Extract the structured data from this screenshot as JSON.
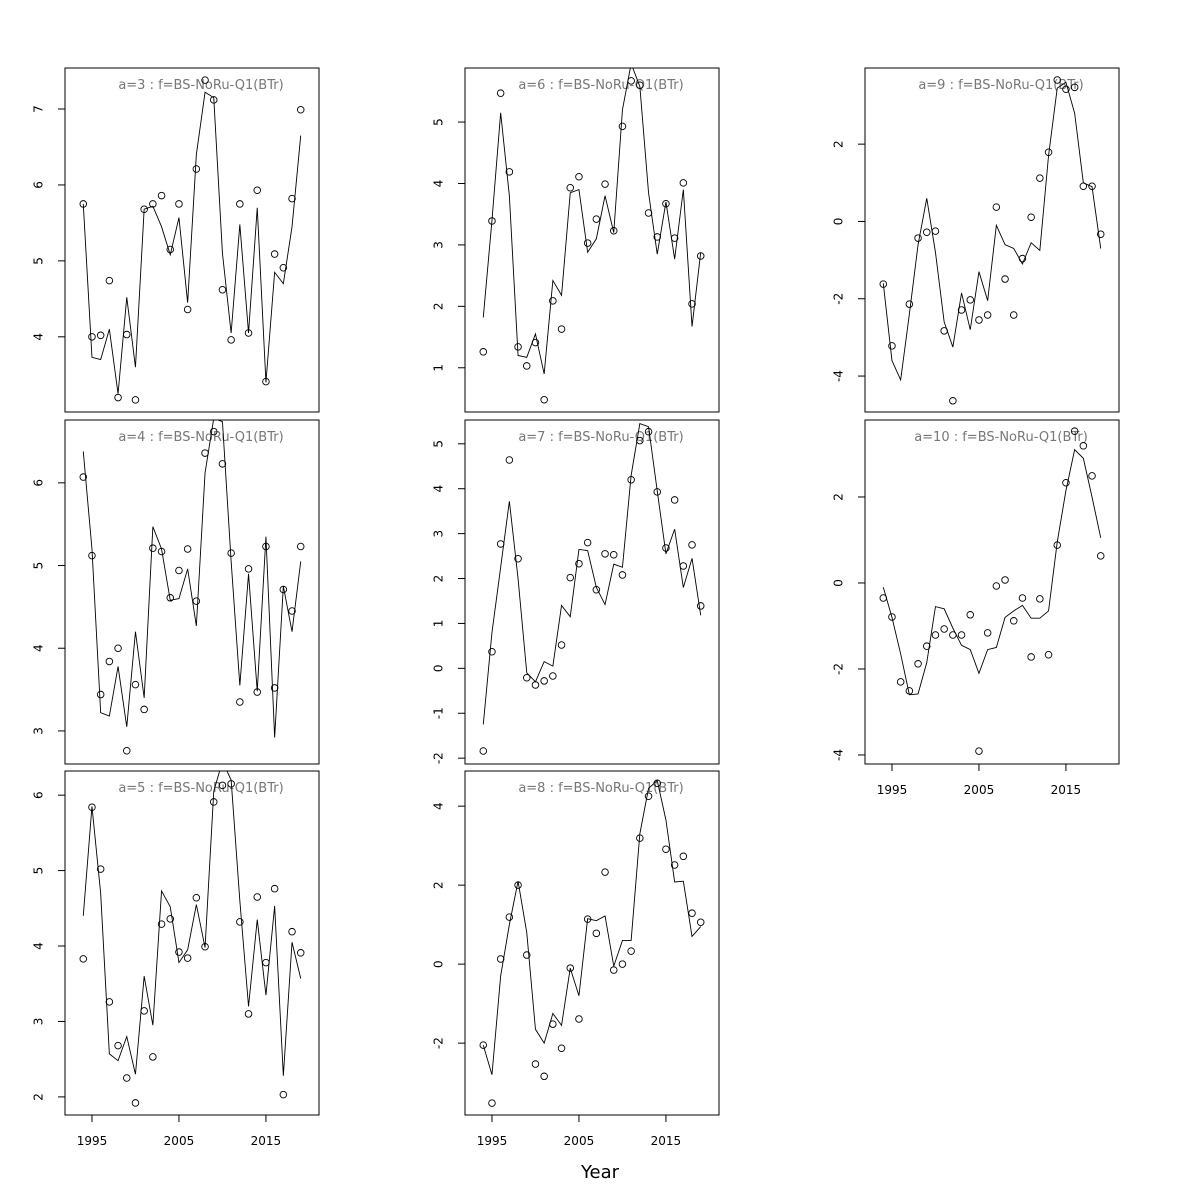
{
  "xlabel": "Year",
  "chart_data": [
    {
      "type": "line",
      "title": "a=3 : f=BS-NoRu-Q1(BTr)",
      "x": [
        1994,
        1995,
        1996,
        1997,
        1998,
        1999,
        2000,
        2001,
        2002,
        2003,
        2004,
        2005,
        2006,
        2007,
        2008,
        2009,
        2010,
        2011,
        2012,
        2013,
        2014,
        2015,
        2016,
        2017,
        2018,
        2019
      ],
      "xlim": [
        1991.9,
        2021.1
      ],
      "ylim": [
        3.01,
        7.54
      ],
      "yticks": [
        4,
        5,
        6,
        7
      ],
      "series": [
        {
          "mark": "points",
          "color": "#000000",
          "values": [
            5.75,
            4.0,
            4.02,
            4.74,
            3.2,
            4.03,
            3.17,
            5.68,
            5.75,
            5.86,
            5.15,
            5.75,
            4.36,
            6.21,
            7.38,
            7.12,
            4.62,
            3.96,
            5.75,
            4.05,
            5.93,
            3.41,
            5.09,
            4.91,
            5.82,
            6.99
          ]
        },
        {
          "mark": "line",
          "color": "#000000",
          "values": [
            5.75,
            3.73,
            3.7,
            4.1,
            3.25,
            4.52,
            3.6,
            5.68,
            5.72,
            5.45,
            5.08,
            5.57,
            4.45,
            6.4,
            7.22,
            7.15,
            5.1,
            4.05,
            5.48,
            4.05,
            5.7,
            3.4,
            4.85,
            4.7,
            5.45,
            6.65
          ]
        }
      ]
    },
    {
      "type": "line",
      "title": "a=4 : f=BS-NoRu-Q1(BTr)",
      "x": [
        1994,
        1995,
        1996,
        1997,
        1998,
        1999,
        2000,
        2001,
        2002,
        2003,
        2004,
        2005,
        2006,
        2007,
        2008,
        2009,
        2010,
        2011,
        2012,
        2013,
        2014,
        2015,
        2016,
        2017,
        2018,
        2019
      ],
      "xlim": [
        1991.9,
        2021.1
      ],
      "ylim": [
        2.6,
        6.76
      ],
      "yticks": [
        3,
        4,
        5,
        6
      ],
      "series": [
        {
          "mark": "points",
          "color": "#000000",
          "values": [
            6.07,
            5.12,
            3.44,
            3.84,
            4.0,
            2.76,
            3.56,
            3.26,
            5.21,
            5.17,
            4.61,
            4.94,
            5.2,
            4.57,
            6.36,
            6.62,
            6.23,
            5.15,
            3.35,
            4.96,
            3.47,
            5.23,
            3.52,
            4.71,
            4.45,
            5.23
          ]
        },
        {
          "mark": "line",
          "color": "#000000",
          "values": [
            6.38,
            5.2,
            3.22,
            3.18,
            3.78,
            3.05,
            4.2,
            3.4,
            5.47,
            5.2,
            4.58,
            4.6,
            4.96,
            4.27,
            6.12,
            6.78,
            6.74,
            5.05,
            3.55,
            4.9,
            3.48,
            5.35,
            2.92,
            4.75,
            4.2,
            5.05
          ]
        }
      ]
    },
    {
      "type": "line",
      "title": "a=5 : f=BS-NoRu-Q1(BTr)",
      "x": [
        1994,
        1995,
        1996,
        1997,
        1998,
        1999,
        2000,
        2001,
        2002,
        2003,
        2004,
        2005,
        2006,
        2007,
        2008,
        2009,
        2010,
        2011,
        2012,
        2013,
        2014,
        2015,
        2016,
        2017,
        2018,
        2019
      ],
      "xlim": [
        1991.9,
        2021.1
      ],
      "ylim": [
        1.76,
        6.32
      ],
      "yticks": [
        2,
        3,
        4,
        5,
        6
      ],
      "xticks": [
        1995,
        2005,
        2015
      ],
      "series": [
        {
          "mark": "points",
          "color": "#000000",
          "values": [
            3.83,
            5.84,
            5.02,
            3.26,
            2.68,
            2.25,
            1.92,
            3.14,
            2.53,
            4.29,
            4.36,
            3.92,
            3.84,
            4.64,
            3.99,
            5.91,
            6.13,
            6.15,
            4.32,
            3.1,
            4.65,
            3.78,
            4.76,
            2.03,
            4.19,
            3.91
          ]
        },
        {
          "mark": "line",
          "color": "#000000",
          "values": [
            4.4,
            5.85,
            4.7,
            2.57,
            2.48,
            2.8,
            2.3,
            3.6,
            2.95,
            4.73,
            4.52,
            3.78,
            3.95,
            4.55,
            3.98,
            6.05,
            6.45,
            6.2,
            4.6,
            3.2,
            4.35,
            3.35,
            4.53,
            2.28,
            4.05,
            3.57
          ]
        }
      ]
    },
    {
      "type": "line",
      "title": "a=6 : f=BS-NoRu-Q1(BTr)",
      "x": [
        1994,
        1995,
        1996,
        1997,
        1998,
        1999,
        2000,
        2001,
        2002,
        2003,
        2004,
        2005,
        2006,
        2007,
        2008,
        2009,
        2010,
        2011,
        2012,
        2013,
        2014,
        2015,
        2016,
        2017,
        2018,
        2019
      ],
      "xlim": [
        1991.9,
        2021.1
      ],
      "ylim": [
        0.28,
        5.88
      ],
      "yticks": [
        1,
        2,
        3,
        4,
        5
      ],
      "series": [
        {
          "mark": "points",
          "color": "#000000",
          "values": [
            1.26,
            3.39,
            5.47,
            4.19,
            1.34,
            1.03,
            1.41,
            0.48,
            2.09,
            1.63,
            3.93,
            4.11,
            3.03,
            3.42,
            3.99,
            3.23,
            4.93,
            5.67,
            5.6,
            3.52,
            3.13,
            3.67,
            3.11,
            4.01,
            2.04,
            2.82
          ]
        },
        {
          "mark": "line",
          "color": "#000000",
          "values": [
            1.82,
            3.4,
            5.15,
            3.8,
            1.2,
            1.17,
            1.55,
            0.9,
            2.42,
            2.18,
            3.85,
            3.9,
            2.88,
            3.1,
            3.8,
            3.2,
            5.2,
            5.95,
            5.58,
            3.85,
            2.85,
            3.7,
            2.77,
            3.9,
            1.67,
            2.88
          ]
        }
      ]
    },
    {
      "type": "line",
      "title": "a=7 : f=BS-NoRu-Q1(BTr)",
      "x": [
        1994,
        1995,
        1996,
        1997,
        1998,
        1999,
        2000,
        2001,
        2002,
        2003,
        2004,
        2005,
        2006,
        2007,
        2008,
        2009,
        2010,
        2011,
        2012,
        2013,
        2014,
        2015,
        2016,
        2017,
        2018,
        2019
      ],
      "xlim": [
        1991.9,
        2021.1
      ],
      "ylim": [
        -2.13,
        5.53
      ],
      "yticks": [
        -2,
        -1,
        0,
        1,
        2,
        3,
        4,
        5
      ],
      "series": [
        {
          "mark": "points",
          "color": "#000000",
          "values": [
            -1.84,
            0.37,
            2.77,
            4.64,
            2.44,
            -0.21,
            -0.37,
            -0.28,
            -0.17,
            0.52,
            2.02,
            2.33,
            2.8,
            1.75,
            2.55,
            2.53,
            2.08,
            4.2,
            5.07,
            5.27,
            3.93,
            2.68,
            3.75,
            2.28,
            2.75,
            1.39
          ]
        },
        {
          "mark": "line",
          "color": "#000000",
          "values": [
            -1.25,
            0.8,
            2.25,
            3.72,
            2.0,
            -0.1,
            -0.3,
            0.15,
            0.05,
            1.4,
            1.15,
            2.65,
            2.62,
            1.8,
            1.42,
            2.32,
            2.25,
            4.3,
            5.45,
            5.38,
            3.95,
            2.55,
            3.1,
            1.8,
            2.45,
            1.18
          ]
        }
      ]
    },
    {
      "type": "line",
      "title": "a=8 : f=BS-NoRu-Q1(BTr)",
      "x": [
        1994,
        1995,
        1996,
        1997,
        1998,
        1999,
        2000,
        2001,
        2002,
        2003,
        2004,
        2005,
        2006,
        2007,
        2008,
        2009,
        2010,
        2011,
        2012,
        2013,
        2014,
        2015,
        2016,
        2017,
        2018,
        2019
      ],
      "xlim": [
        1991.9,
        2021.1
      ],
      "ylim": [
        -3.82,
        4.89
      ],
      "yticks": [
        -2,
        0,
        2,
        4
      ],
      "xticks": [
        1995,
        2005,
        2015
      ],
      "series": [
        {
          "mark": "points",
          "color": "#000000",
          "values": [
            -2.05,
            -3.52,
            0.13,
            1.19,
            2.0,
            0.23,
            -2.53,
            -2.84,
            -1.52,
            -2.13,
            -0.1,
            -1.39,
            1.14,
            0.78,
            2.33,
            -0.15,
            0.0,
            0.33,
            3.19,
            4.25,
            4.58,
            2.91,
            2.51,
            2.73,
            1.29,
            1.06
          ]
        },
        {
          "mark": "line",
          "color": "#000000",
          "values": [
            -2.05,
            -2.8,
            -0.3,
            1.0,
            2.1,
            0.8,
            -1.65,
            -2.0,
            -1.25,
            -1.55,
            -0.1,
            -0.8,
            1.15,
            1.1,
            1.22,
            -0.05,
            0.6,
            0.6,
            3.3,
            4.45,
            4.65,
            3.65,
            2.08,
            2.1,
            0.7,
            0.95
          ]
        }
      ]
    },
    {
      "type": "line",
      "title": "a=9 : f=BS-NoRu-Q1(BTr)",
      "x": [
        1994,
        1995,
        1996,
        1997,
        1998,
        1999,
        2000,
        2001,
        2002,
        2003,
        2004,
        2005,
        2006,
        2007,
        2008,
        2009,
        2010,
        2011,
        2012,
        2013,
        2014,
        2015,
        2016,
        2017,
        2018,
        2019
      ],
      "xlim": [
        1991.9,
        2021.1
      ],
      "ylim": [
        -4.93,
        3.97
      ],
      "yticks": [
        -4,
        -2,
        0,
        2
      ],
      "series": [
        {
          "mark": "points",
          "color": "#000000",
          "values": [
            -1.62,
            -3.22,
            null,
            -2.14,
            -0.43,
            -0.28,
            -0.25,
            -2.83,
            -4.64,
            -2.29,
            -2.03,
            -2.55,
            -2.42,
            0.37,
            -1.49,
            -2.42,
            -0.96,
            0.11,
            1.12,
            1.79,
            3.66,
            3.42,
            3.47,
            0.91,
            0.91,
            -0.33
          ]
        },
        {
          "mark": "line",
          "color": "#000000",
          "values": [
            -1.6,
            -3.6,
            -4.1,
            -2.4,
            -0.6,
            0.6,
            -0.8,
            -2.6,
            -3.25,
            -1.85,
            -2.8,
            -1.3,
            -2.05,
            -0.1,
            -0.6,
            -0.7,
            -1.1,
            -0.55,
            -0.75,
            1.7,
            3.45,
            3.6,
            2.8,
            1.0,
            0.9,
            -0.7
          ]
        }
      ]
    },
    {
      "type": "line",
      "title": "a=10 : f=BS-NoRu-Q1(BTr)",
      "x": [
        1994,
        1995,
        1996,
        1997,
        1998,
        1999,
        2000,
        2001,
        2002,
        2003,
        2004,
        2005,
        2006,
        2007,
        2008,
        2009,
        2010,
        2011,
        2012,
        2013,
        2014,
        2015,
        2016,
        2017,
        2018,
        2019
      ],
      "xlim": [
        1991.9,
        2021.1
      ],
      "ylim": [
        -4.21,
        3.79
      ],
      "yticks": [
        -4,
        -2,
        0,
        2
      ],
      "xticks": [
        1995,
        2005,
        2015
      ],
      "series": [
        {
          "mark": "points",
          "color": "#000000",
          "values": [
            -0.35,
            -0.79,
            -2.3,
            -2.51,
            -1.88,
            -1.47,
            -1.21,
            -1.07,
            -1.21,
            -1.21,
            -0.74,
            -3.91,
            -1.16,
            -0.07,
            0.07,
            -0.88,
            -0.35,
            -1.72,
            -0.37,
            -1.67,
            0.88,
            2.33,
            3.53,
            3.19,
            2.49,
            0.63
          ]
        },
        {
          "mark": "line",
          "color": "#000000",
          "values": [
            -0.1,
            -0.8,
            -1.65,
            -2.6,
            -2.58,
            -1.85,
            -0.55,
            -0.6,
            -1.05,
            -1.45,
            -1.55,
            -2.1,
            -1.55,
            -1.5,
            -0.8,
            -0.65,
            -0.52,
            -0.82,
            -0.82,
            -0.65,
            0.95,
            2.15,
            3.1,
            2.9,
            2.0,
            1.05
          ]
        }
      ]
    }
  ]
}
